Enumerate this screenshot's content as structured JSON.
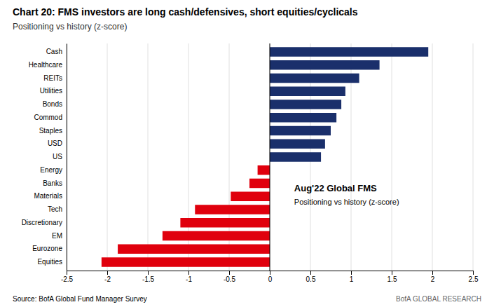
{
  "chart_data": {
    "type": "bar",
    "orientation": "horizontal",
    "title": "Chart 20: FMS investors are long cash/defensives, short equities/cyclicals",
    "subtitle": "Positioning vs history (z-score)",
    "annotations": [
      "Aug'22 Global FMS",
      "Positioning vs history (z-score)"
    ],
    "source": "Source: BofA Global Fund Manager Survey",
    "branding": "BofA GLOBAL RESEARCH",
    "categories": [
      "Cash",
      "Healthcare",
      "REITs",
      "Utilities",
      "Bonds",
      "Commod",
      "Staples",
      "USD",
      "US",
      "Energy",
      "Banks",
      "Materials",
      "Tech",
      "Discretionary",
      "EM",
      "Eurozone",
      "Equities"
    ],
    "values": [
      1.95,
      1.35,
      1.1,
      0.93,
      0.88,
      0.82,
      0.75,
      0.68,
      0.63,
      -0.15,
      -0.25,
      -0.48,
      -0.92,
      -1.1,
      -1.32,
      -1.87,
      -2.07
    ],
    "colors": [
      "#1a2f6b",
      "#1a2f6b",
      "#1a2f6b",
      "#1a2f6b",
      "#1a2f6b",
      "#1a2f6b",
      "#1a2f6b",
      "#1a2f6b",
      "#1a2f6b",
      "#e0000d",
      "#e0000d",
      "#e0000d",
      "#e0000d",
      "#e0000d",
      "#e0000d",
      "#e0000d",
      "#e0000d"
    ],
    "xlim": [
      -2.5,
      2.5
    ],
    "xticks": [
      -2.5,
      -2,
      -1.5,
      -1,
      -0.5,
      0,
      0.5,
      1,
      1.5,
      2,
      2.5
    ],
    "grid": true
  }
}
